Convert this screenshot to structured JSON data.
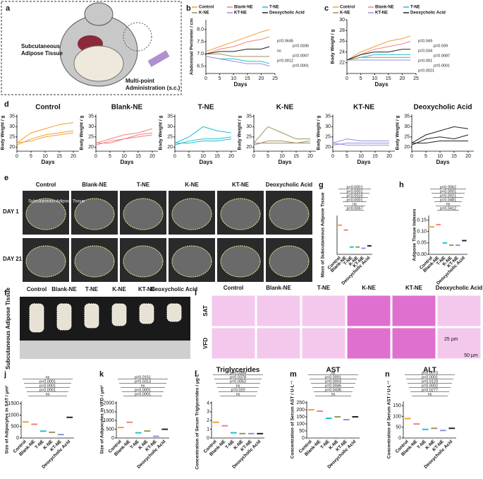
{
  "panel_a": {
    "letter": "a",
    "labels": [
      "Subcutaneous",
      "Adipose Tissue",
      "Multi-point",
      "Administration (s.c.)"
    ]
  },
  "panel_e": {
    "letter": "e",
    "columns": [
      "Control",
      "Blank-NE",
      "T-NE",
      "K-NE",
      "KT-NE",
      "Deoxycholic Acid"
    ],
    "rows": [
      "DAY 1",
      "DAY 21"
    ],
    "overlay": "Subcutaneous Adipose Tissue"
  },
  "panel_f": {
    "letter": "f",
    "columns": [
      "Control",
      "Blank-NE",
      "T-NE",
      "K-NE",
      "KT-NE",
      "Deoxycholic Acid"
    ],
    "side_label": "Subcutaneous Adipose Tissue"
  },
  "panel_i": {
    "letter": "i",
    "columns": [
      "Control",
      "Blank-NE",
      "T-NE",
      "K-NE",
      "KT-NE",
      "Deoxycholic Acid"
    ],
    "rows": [
      "SAT",
      "VFD"
    ],
    "scales": [
      "25 μm",
      "50 μm"
    ]
  },
  "chart_data": [
    {
      "panel": "b",
      "type": "line",
      "xlabel": "Days",
      "ylabel": "Abdominal Perimeter / cm",
      "x": [
        0,
        5,
        10,
        15,
        20,
        23
      ],
      "xlim": [
        0,
        25
      ],
      "xticks": [
        0,
        5,
        10,
        15,
        20,
        25
      ],
      "ylim": [
        6.2,
        8.4
      ],
      "yticks": [
        6.5,
        {
          "value": 7,
          "label": "7.0"
        },
        7.5,
        {
          "value": 8,
          "label": "8.0"
        }
      ],
      "series": [
        {
          "name": "Control",
          "color": "#f0a030",
          "values": [
            7.1,
            7.3,
            7.5,
            7.7,
            7.9,
            8.0
          ]
        },
        {
          "name": "Blank-NE",
          "color": "#f08080",
          "values": [
            7.0,
            7.2,
            7.3,
            7.5,
            7.6,
            7.7
          ]
        },
        {
          "name": "T-NE",
          "color": "#20c0d0",
          "values": [
            6.9,
            6.8,
            6.8,
            6.7,
            6.7,
            6.6
          ]
        },
        {
          "name": "K-NE",
          "color": "#a09060",
          "values": [
            7.0,
            7.0,
            6.9,
            6.9,
            6.9,
            6.9
          ]
        },
        {
          "name": "KT-NE",
          "color": "#9090e0",
          "values": [
            6.9,
            6.8,
            6.7,
            6.6,
            6.6,
            6.5
          ]
        },
        {
          "name": "Deoxycholic Acid",
          "color": "#222222",
          "values": [
            7.0,
            7.1,
            7.1,
            7.2,
            7.2,
            7.3
          ]
        }
      ],
      "annotations": [
        "p=0.0645",
        "p=0.0336",
        "ns",
        "p=0.0007",
        "p=0.0012",
        "p=0.0001"
      ]
    },
    {
      "panel": "c",
      "type": "line",
      "xlabel": "Days",
      "ylabel": "Body Weight / g",
      "x": [
        0,
        5,
        10,
        15,
        20,
        23
      ],
      "xlim": [
        0,
        25
      ],
      "xticks": [
        0,
        5,
        10,
        15,
        20,
        25
      ],
      "ylim": [
        20,
        30
      ],
      "yticks": [
        22,
        24,
        26,
        28,
        30
      ],
      "series": [
        {
          "name": "Control",
          "color": "#f0a030",
          "values": [
            22.5,
            24,
            25,
            26,
            26.5,
            27
          ]
        },
        {
          "name": "Blank-NE",
          "color": "#f08080",
          "values": [
            22.5,
            23.5,
            24.5,
            25,
            25.5,
            26
          ]
        },
        {
          "name": "T-NE",
          "color": "#20c0d0",
          "values": [
            22.5,
            23,
            23.5,
            23.5,
            23.5,
            23.5
          ]
        },
        {
          "name": "K-NE",
          "color": "#a09060",
          "values": [
            22.5,
            23,
            23,
            23,
            23,
            23
          ]
        },
        {
          "name": "KT-NE",
          "color": "#9090e0",
          "values": [
            22.5,
            22.5,
            22.5,
            22.5,
            22.5,
            22.5
          ]
        },
        {
          "name": "Deoxycholic Acid",
          "color": "#222222",
          "values": [
            22.5,
            23.5,
            24,
            24,
            24.5,
            24.5
          ]
        }
      ],
      "annotations": [
        "p=0.049",
        "p=0.039",
        "p=0.034",
        "p=0.0087",
        "p=0.001",
        "p=0.0001",
        "p=0.0021"
      ]
    },
    {
      "panel": "d",
      "type": "line",
      "title": "Control",
      "xlabel": "Days",
      "ylabel": "Body Weight / g",
      "x": [
        0,
        5,
        10,
        15,
        20
      ],
      "xlim": [
        0,
        22
      ],
      "xticks": [
        0,
        5,
        10,
        15,
        20
      ],
      "ylim": [
        18,
        36
      ],
      "yticks": [
        20,
        25,
        30,
        35
      ],
      "series": [
        {
          "color": "#f0a030",
          "values": [
            22,
            27,
            29,
            31,
            32
          ]
        },
        {
          "color": "#f0a030",
          "values": [
            21,
            24,
            26,
            27,
            28
          ]
        },
        {
          "color": "#f0a030",
          "values": [
            22,
            23,
            25,
            26,
            27
          ]
        }
      ]
    },
    {
      "type": "line",
      "title": "Blank-NE",
      "xlabel": "Days",
      "ylabel": "Body Weight / g",
      "x": [
        0,
        5,
        10,
        15,
        20
      ],
      "xlim": [
        0,
        22
      ],
      "xticks": [
        0,
        5,
        10,
        15,
        20
      ],
      "ylim": [
        18,
        36
      ],
      "yticks": [
        20,
        25,
        30,
        35
      ],
      "series": [
        {
          "color": "#f08080",
          "values": [
            22,
            24,
            26,
            27,
            29
          ]
        },
        {
          "color": "#f08080",
          "values": [
            21,
            23,
            24,
            26,
            27
          ]
        },
        {
          "color": "#f08080",
          "values": [
            22,
            22,
            24,
            25,
            26
          ]
        }
      ]
    },
    {
      "type": "line",
      "title": "T-NE",
      "xlabel": "Days",
      "ylabel": "Body Weight / g",
      "x": [
        0,
        5,
        10,
        15,
        20
      ],
      "xlim": [
        0,
        22
      ],
      "xticks": [
        0,
        5,
        10,
        15,
        20
      ],
      "ylim": [
        18,
        36
      ],
      "yticks": [
        20,
        25,
        30,
        35
      ],
      "series": [
        {
          "color": "#20c0d0",
          "values": [
            22,
            25,
            30,
            28,
            27
          ]
        },
        {
          "color": "#20c0d0",
          "values": [
            21,
            23,
            24,
            24,
            25
          ]
        },
        {
          "color": "#20c0d0",
          "values": [
            22,
            22,
            23,
            23,
            24
          ]
        }
      ]
    },
    {
      "type": "line",
      "title": "K-NE",
      "xlabel": "Days",
      "ylabel": "Body Weight / g",
      "x": [
        0,
        5,
        10,
        15,
        20
      ],
      "xlim": [
        0,
        22
      ],
      "xticks": [
        0,
        5,
        10,
        15,
        20
      ],
      "ylim": [
        18,
        36
      ],
      "yticks": [
        20,
        25,
        30,
        35
      ],
      "series": [
        {
          "color": "#a09060",
          "values": [
            22,
            30,
            27,
            24,
            24
          ]
        },
        {
          "color": "#a09060",
          "values": [
            21,
            23,
            23,
            22,
            23
          ]
        },
        {
          "color": "#a09060",
          "values": [
            22,
            22,
            22,
            22,
            22
          ]
        }
      ]
    },
    {
      "type": "line",
      "title": "KT-NE",
      "xlabel": "Days",
      "ylabel": "Body Weight / g",
      "x": [
        0,
        5,
        10,
        15,
        20
      ],
      "xlim": [
        0,
        22
      ],
      "xticks": [
        0,
        5,
        10,
        15,
        20
      ],
      "ylim": [
        18,
        36
      ],
      "yticks": [
        20,
        25,
        30,
        35
      ],
      "series": [
        {
          "color": "#9090e0",
          "values": [
            22,
            24,
            23,
            23,
            23
          ]
        },
        {
          "color": "#9090e0",
          "values": [
            21,
            22,
            22,
            22,
            22
          ]
        },
        {
          "color": "#9090e0",
          "values": [
            22,
            21,
            21,
            21,
            21
          ]
        }
      ]
    },
    {
      "type": "line",
      "title": "Deoxycholic Acid",
      "xlabel": "Days",
      "ylabel": "Body Weight / g",
      "x": [
        0,
        5,
        10,
        15,
        20
      ],
      "xlim": [
        0,
        22
      ],
      "xticks": [
        0,
        5,
        10,
        15,
        20
      ],
      "ylim": [
        18,
        36
      ],
      "yticks": [
        20,
        25,
        30,
        35
      ],
      "series": [
        {
          "color": "#222222",
          "values": [
            22,
            26,
            28,
            30,
            29
          ]
        },
        {
          "color": "#222222",
          "values": [
            21,
            24,
            25,
            24,
            26
          ]
        },
        {
          "color": "#222222",
          "values": [
            22,
            22,
            23,
            23,
            23
          ]
        }
      ]
    },
    {
      "panel": "g",
      "type": "dot",
      "ylabel": "Mass of Subcutaneous Adipose Tissue",
      "categories": [
        "Control",
        "Blank-NE",
        "T-NE",
        "K-NE",
        "KT-NE",
        "Deoxycholic Acid"
      ],
      "values": [
        1.2,
        1.0,
        0.3,
        0.3,
        0.25,
        0.35
      ],
      "ylim": [
        0,
        1.6
      ],
      "colors": [
        "#f0a030",
        "#f08080",
        "#20c0d0",
        "#a09060",
        "#9090e0",
        "#222222"
      ],
      "annotations": [
        "p<0.0001",
        "p<0.0001",
        "p=0.0016",
        "p<0.0001",
        "ns",
        "p=0.0067"
      ]
    },
    {
      "panel": "h",
      "type": "dot",
      "ylabel": "Adipose Tissue Indexes",
      "categories": [
        "Control",
        "Blank-NE",
        "T-NE",
        "K-NE",
        "KT-NE",
        "Deoxycholic Acid"
      ],
      "values": [
        0.12,
        0.13,
        0.05,
        0.04,
        0.04,
        0.06
      ],
      "ylim": [
        0,
        0.17
      ],
      "yticks": [
        {
          "value": 0,
          "label": "0.00"
        },
        {
          "value": 0.05,
          "label": "0.05"
        },
        {
          "value": 0.1,
          "label": "0.10"
        },
        {
          "value": 0.15,
          "label": "0.15"
        }
      ],
      "colors": [
        "#f0a030",
        "#f08080",
        "#20c0d0",
        "#a09060",
        "#9090e0",
        "#222222"
      ],
      "annotations": [
        "p=0.0062",
        "p<0.0001",
        "p=0.0021",
        "p=0.0481",
        "ns",
        "p=0.0412"
      ]
    },
    {
      "panel": "j",
      "type": "dot",
      "ylabel": "Size of Adipocytes in SAT / μm²",
      "categories": [
        "Control",
        "Blank-NE",
        "T-NE",
        "K-NE",
        "KT-NE",
        "Deoxycholic Acid"
      ],
      "values": [
        700,
        600,
        300,
        250,
        150,
        900
      ],
      "ylim": [
        0,
        1600
      ],
      "yticks": [
        0,
        500,
        1000,
        1500
      ],
      "colors": [
        "#f0a030",
        "#f08080",
        "#20c0d0",
        "#a09060",
        "#9090e0",
        "#222222"
      ],
      "annotations": [
        "ns",
        "p<0.0001",
        "p<0.0001",
        "p<0.0001",
        "ns"
      ]
    },
    {
      "panel": "k",
      "type": "dot",
      "ylabel": "Size of Adipocytes in VFD / μm²",
      "categories": [
        "Control",
        "Blank-NE",
        "T-NE",
        "K-NE",
        "KT-NE",
        "Deoxycholic Acid"
      ],
      "values": [
        600,
        900,
        300,
        400,
        100,
        500
      ],
      "ylim": [
        0,
        2100
      ],
      "yticks": [
        0,
        500,
        1000,
        1500,
        2000
      ],
      "colors": [
        "#f0a030",
        "#f08080",
        "#20c0d0",
        "#a09060",
        "#9090e0",
        "#222222"
      ],
      "annotations": [
        "p=0.0151",
        "p=0.0313",
        "ns",
        "p<0.0001",
        "p<0.0001"
      ]
    },
    {
      "panel": "l",
      "type": "dot",
      "title": "Triglycerides",
      "ylabel": "Concentration of Serum Triglycerides / μg·L⁻¹",
      "categories": [
        "Control",
        "Blank-NE",
        "T-NE",
        "K-NE",
        "KT-NE",
        "Deoxycholic Acid"
      ],
      "values": [
        1.8,
        1.4,
        0.6,
        0.5,
        0.5,
        0.5
      ],
      "ylim": [
        0,
        4.2
      ],
      "yticks": [
        0,
        1,
        2,
        3,
        4
      ],
      "colors": [
        "#f0a030",
        "#f08080",
        "#20c0d0",
        "#a09060",
        "#9090e0",
        "#222222"
      ],
      "annotations": [
        "p=0.0384",
        "p=0.0378",
        "p=0.0052",
        "ns",
        "p=0.020",
        "ns"
      ]
    },
    {
      "panel": "m",
      "type": "dot",
      "title": "AST",
      "ylabel": "Concentration of Serum AST / U·L⁻¹",
      "categories": [
        "Control",
        "Blank-NE",
        "T-NE",
        "K-NE",
        "KT-NE",
        "Deoxycholic Acid"
      ],
      "values": [
        200,
        190,
        140,
        150,
        130,
        150
      ],
      "ylim": [
        0,
        260
      ],
      "yticks": [
        0,
        50,
        100,
        150,
        200,
        250
      ],
      "colors": [
        "#f0a030",
        "#f08080",
        "#20c0d0",
        "#a09060",
        "#9090e0",
        "#222222"
      ],
      "annotations": [
        "ns",
        "p<0.0001",
        "p=0.0003",
        "p=0.0046",
        "p=0.0436",
        "ns"
      ]
    },
    {
      "panel": "n",
      "type": "dot",
      "title": "ALT",
      "ylabel": "Concentration of Serum AST / U·L⁻¹",
      "categories": [
        "Control",
        "Blank-NE",
        "T-NE",
        "K-NE",
        "KT-NE",
        "Deoxycholic Acid"
      ],
      "values": [
        90,
        65,
        40,
        45,
        35,
        45
      ],
      "ylim": [
        0,
        170
      ],
      "yticks": [
        0,
        50,
        100,
        150
      ],
      "colors": [
        "#f0a030",
        "#f08080",
        "#20c0d0",
        "#a09060",
        "#9090e0",
        "#222222"
      ],
      "annotations": [
        "p=0.0073",
        "p<0.0001",
        "p=0.0129",
        "p=0.0002",
        "p=0.0277",
        "ns"
      ]
    }
  ]
}
